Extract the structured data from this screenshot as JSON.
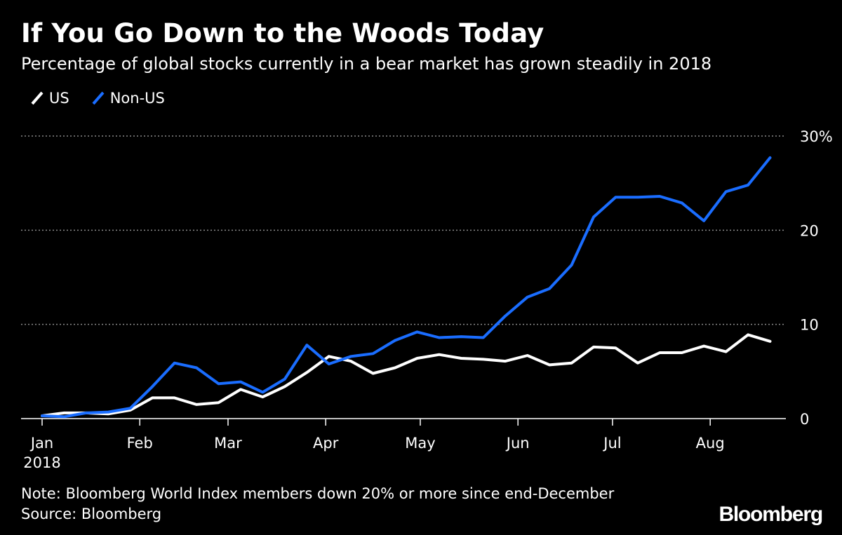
{
  "title": "If You Go Down to the Woods Today",
  "subtitle": "Percentage of global stocks currently in a bear market has grown steadily in 2018",
  "legend": [
    {
      "name": "US",
      "color": "#ffffff"
    },
    {
      "name": "Non-US",
      "color": "#1a6dff"
    }
  ],
  "notes": {
    "note": "Note: Bloomberg World Index members down 20% or more since end-December",
    "source": "Source: Bloomberg"
  },
  "logo": "Bloomberg",
  "chart_data": {
    "type": "line",
    "title": "If You Go Down to the Woods Today",
    "xlabel": "",
    "ylabel": "",
    "ylim": [
      0,
      30
    ],
    "yticks": [
      0,
      10,
      20,
      30
    ],
    "ytick_labels": [
      "0",
      "10",
      "20",
      "30%"
    ],
    "grid": true,
    "x_domain": [
      0,
      232
    ],
    "xticks": [
      {
        "x": 0,
        "label": "Jan",
        "sublabel": "2018"
      },
      {
        "x": 31,
        "label": "Feb"
      },
      {
        "x": 59,
        "label": "Mar"
      },
      {
        "x": 90,
        "label": "Apr"
      },
      {
        "x": 120,
        "label": "May"
      },
      {
        "x": 151,
        "label": "Jun"
      },
      {
        "x": 181,
        "label": "Jul"
      },
      {
        "x": 212,
        "label": "Aug"
      }
    ],
    "x": [
      0,
      7,
      14,
      21,
      28,
      35,
      42,
      49,
      56,
      63,
      70,
      77,
      84,
      91,
      98,
      105,
      112,
      119,
      126,
      133,
      140,
      147,
      154,
      161,
      168,
      175,
      182,
      189,
      196,
      203,
      210,
      217,
      224,
      231
    ],
    "series": [
      {
        "name": "US",
        "color": "#ffffff",
        "values": [
          0.3,
          0.6,
          0.6,
          0.5,
          0.9,
          2.2,
          2.2,
          1.5,
          1.7,
          3.1,
          2.3,
          3.4,
          4.9,
          6.6,
          6.1,
          4.8,
          5.4,
          6.4,
          6.8,
          6.4,
          6.3,
          6.1,
          6.7,
          5.7,
          5.9,
          7.6,
          7.5,
          5.9,
          7.0,
          7.0,
          7.7,
          7.1,
          8.9,
          8.2
        ]
      },
      {
        "name": "Non-US",
        "color": "#1a6dff",
        "values": [
          0.3,
          0.2,
          0.6,
          0.7,
          1.1,
          3.4,
          5.9,
          5.4,
          3.7,
          3.9,
          2.8,
          4.2,
          7.8,
          5.8,
          6.6,
          6.9,
          8.3,
          9.2,
          8.6,
          8.7,
          8.6,
          10.9,
          12.9,
          13.8,
          16.3,
          21.4,
          23.5,
          23.5,
          23.6,
          22.9,
          21.0,
          24.1,
          24.8,
          27.7
        ]
      }
    ]
  }
}
